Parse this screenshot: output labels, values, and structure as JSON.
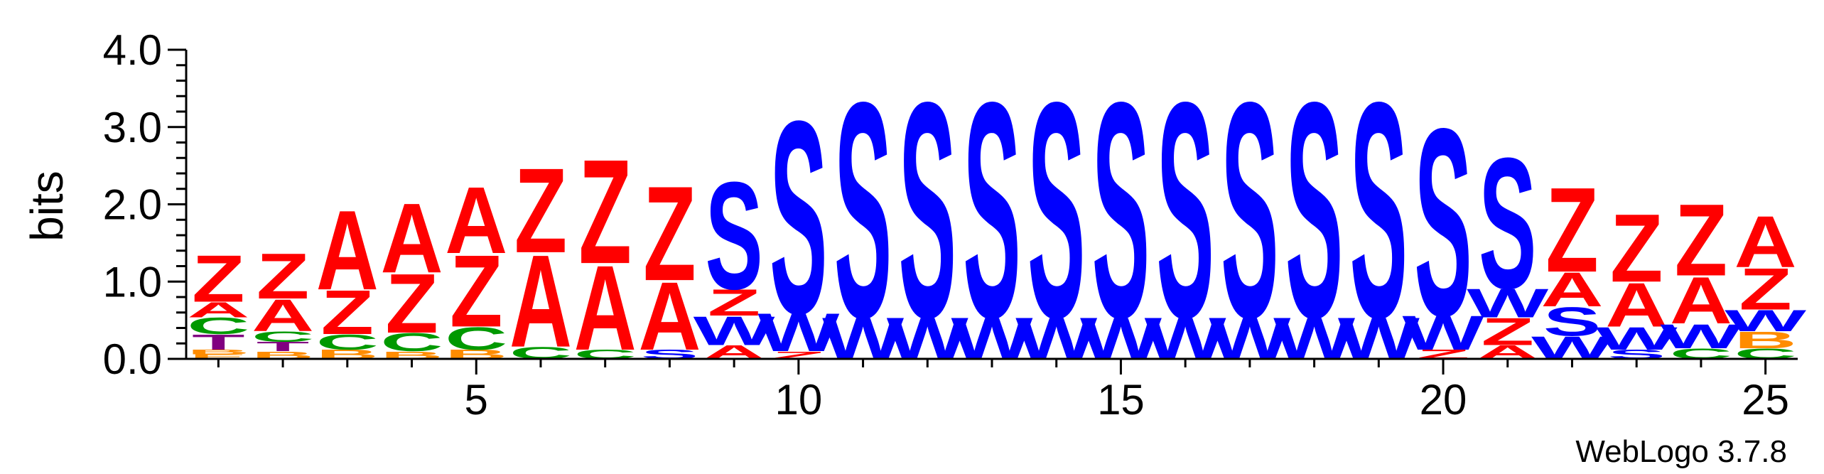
{
  "chart_data": {
    "type": "sequence-logo",
    "ylabel": "bits",
    "ylim": [
      0,
      4.0
    ],
    "y_ticks": [
      "0.0",
      "1.0",
      "2.0",
      "3.0",
      "4.0"
    ],
    "x_ticks": [
      5,
      10,
      15,
      20,
      25
    ],
    "positions": [
      1,
      2,
      3,
      4,
      5,
      6,
      7,
      8,
      9,
      10,
      11,
      12,
      13,
      14,
      15,
      16,
      17,
      18,
      19,
      20,
      21,
      22,
      23,
      24,
      25
    ],
    "watermark": "WebLogo 3.7.8",
    "colors": {
      "Z": "#ff0000",
      "A": "#ff0000",
      "S": "#0000ff",
      "W": "#0000ff",
      "C": "#009900",
      "T": "#800080",
      "B": "#ff8c00",
      "E": "#ff8c00"
    },
    "stacks": [
      [
        {
          "l": "E",
          "h": 0.06
        },
        {
          "l": "B",
          "h": 0.06
        },
        {
          "l": "T",
          "h": 0.2
        },
        {
          "l": "C",
          "h": 0.22
        },
        {
          "l": "A",
          "h": 0.2
        },
        {
          "l": "Z",
          "h": 0.62
        }
      ],
      [
        {
          "l": "B",
          "h": 0.1
        },
        {
          "l": "T",
          "h": 0.12
        },
        {
          "l": "C",
          "h": 0.14
        },
        {
          "l": "A",
          "h": 0.42
        },
        {
          "l": "Z",
          "h": 0.6
        }
      ],
      [
        {
          "l": "B",
          "h": 0.12
        },
        {
          "l": "C",
          "h": 0.2
        },
        {
          "l": "Z",
          "h": 0.58
        },
        {
          "l": "A",
          "h": 1.05
        }
      ],
      [
        {
          "l": "B",
          "h": 0.1
        },
        {
          "l": "C",
          "h": 0.24
        },
        {
          "l": "Z",
          "h": 0.78
        },
        {
          "l": "A",
          "h": 0.92
        }
      ],
      [
        {
          "l": "B",
          "h": 0.12
        },
        {
          "l": "C",
          "h": 0.3
        },
        {
          "l": "Z",
          "h": 0.95
        },
        {
          "l": "A",
          "h": 0.88
        }
      ],
      [
        {
          "l": "C",
          "h": 0.16
        },
        {
          "l": "A",
          "h": 1.22
        },
        {
          "l": "Z",
          "h": 1.12
        }
      ],
      [
        {
          "l": "C",
          "h": 0.12
        },
        {
          "l": "A",
          "h": 1.12
        },
        {
          "l": "Z",
          "h": 1.38
        }
      ],
      [
        {
          "l": "S",
          "h": 0.12
        },
        {
          "l": "A",
          "h": 0.9
        },
        {
          "l": "Z",
          "h": 1.25
        }
      ],
      [
        {
          "l": "A",
          "h": 0.18
        },
        {
          "l": "W",
          "h": 0.38
        },
        {
          "l": "Z",
          "h": 0.35
        },
        {
          "l": "S",
          "h": 1.42
        }
      ],
      [
        {
          "l": "Z",
          "h": 0.1
        },
        {
          "l": "W",
          "h": 0.5
        },
        {
          "l": "S",
          "h": 2.55
        }
      ],
      [
        {
          "l": "W",
          "h": 0.55
        },
        {
          "l": "S",
          "h": 2.85
        }
      ],
      [
        {
          "l": "W",
          "h": 0.55
        },
        {
          "l": "S",
          "h": 2.85
        }
      ],
      [
        {
          "l": "W",
          "h": 0.55
        },
        {
          "l": "S",
          "h": 2.85
        }
      ],
      [
        {
          "l": "W",
          "h": 0.55
        },
        {
          "l": "S",
          "h": 2.85
        }
      ],
      [
        {
          "l": "W",
          "h": 0.55
        },
        {
          "l": "S",
          "h": 2.85
        }
      ],
      [
        {
          "l": "W",
          "h": 0.55
        },
        {
          "l": "S",
          "h": 2.85
        }
      ],
      [
        {
          "l": "W",
          "h": 0.55
        },
        {
          "l": "S",
          "h": 2.85
        }
      ],
      [
        {
          "l": "W",
          "h": 0.55
        },
        {
          "l": "S",
          "h": 2.85
        }
      ],
      [
        {
          "l": "W",
          "h": 0.55
        },
        {
          "l": "S",
          "h": 2.85
        }
      ],
      [
        {
          "l": "Z",
          "h": 0.12
        },
        {
          "l": "W",
          "h": 0.45
        },
        {
          "l": "S",
          "h": 2.48
        }
      ],
      [
        {
          "l": "A",
          "h": 0.18
        },
        {
          "l": "Z",
          "h": 0.36
        },
        {
          "l": "W",
          "h": 0.38
        },
        {
          "l": "S",
          "h": 1.73
        }
      ],
      [
        {
          "l": "W",
          "h": 0.3
        },
        {
          "l": "S",
          "h": 0.38
        },
        {
          "l": "A",
          "h": 0.45
        },
        {
          "l": "Z",
          "h": 1.12
        }
      ],
      [
        {
          "l": "S",
          "h": 0.12
        },
        {
          "l": "W",
          "h": 0.3
        },
        {
          "l": "A",
          "h": 0.58
        },
        {
          "l": "Z",
          "h": 0.9
        }
      ],
      [
        {
          "l": "C",
          "h": 0.14
        },
        {
          "l": "W",
          "h": 0.32
        },
        {
          "l": "A",
          "h": 0.62
        },
        {
          "l": "Z",
          "h": 0.95
        }
      ],
      [
        {
          "l": "C",
          "h": 0.14
        },
        {
          "l": "B",
          "h": 0.22
        },
        {
          "l": "W",
          "h": 0.28
        },
        {
          "l": "Z",
          "h": 0.55
        },
        {
          "l": "A",
          "h": 0.68
        }
      ]
    ]
  }
}
